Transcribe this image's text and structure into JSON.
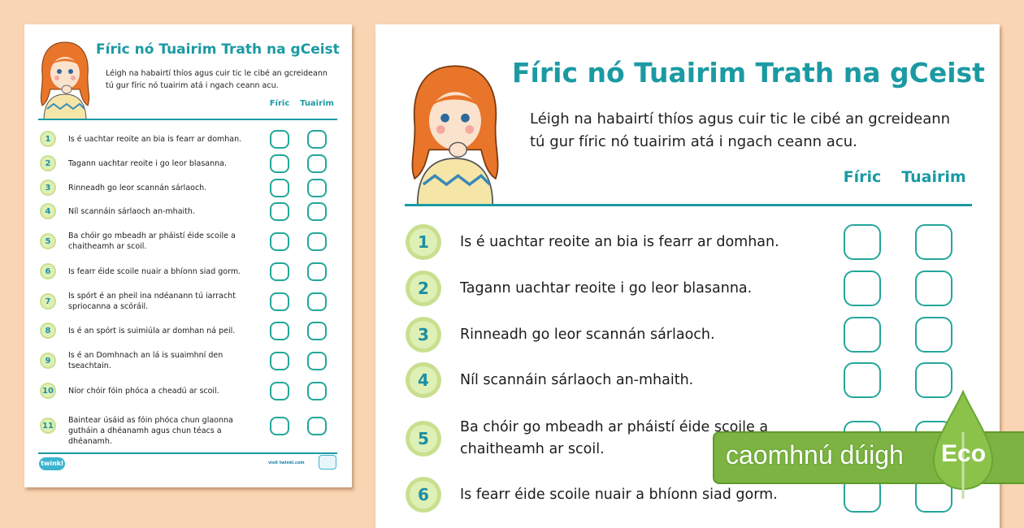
{
  "worksheet": {
    "title": "Fíric nó Tuairim Trath na gCeist",
    "intro_line1": "Léigh na habairtí thíos agus cuir tic le cibé an gcreideann",
    "intro_line2": "tú gur fíric nó tuairim atá i ngach ceann acu.",
    "col_fact": "Fíric",
    "col_opinion": "Tuairim",
    "items": [
      {
        "n": "1",
        "text": "Is é uachtar reoite an bia is fearr ar domhan."
      },
      {
        "n": "2",
        "text": "Tagann uachtar reoite i go leor blasanna."
      },
      {
        "n": "3",
        "text": "Rinneadh go leor scannán sárlaoch."
      },
      {
        "n": "4",
        "text": "Níl scannáin sárlaoch an-mhaith."
      },
      {
        "n": "5",
        "text": "Ba chóir go mbeadh ar pháistí éide scoile a chaitheamh ar scoil."
      },
      {
        "n": "6",
        "text": "Is fearr éide scoile nuair a bhíonn siad gorm."
      },
      {
        "n": "7",
        "text": "Is spórt é an pheil ina ndéanann tú iarracht spriocanna a scóráil."
      },
      {
        "n": "8",
        "text": "Is é an spórt is suimiúla ar domhan ná peil."
      },
      {
        "n": "9",
        "text": "Is é an Domhnach an lá is suaimhní den tseachtain."
      },
      {
        "n": "10",
        "text": "Níor chóir fóin phóca a cheadú ar scoil."
      },
      {
        "n": "11",
        "text": "Baintear úsáid as fóin phóca chun glaonna gutháin a dhéanamh agus chun téacs a dhéanamh."
      }
    ],
    "footer_logo": "twinkl",
    "footer_link": "visit twinkl.com"
  },
  "eco_banner": {
    "label": "caomhnú dúigh",
    "badge": "Eco",
    "color": "#7cb342"
  },
  "colors": {
    "accent": "#1b9aa3",
    "background": "#fad5b4",
    "checkbox": "#23a79a"
  }
}
